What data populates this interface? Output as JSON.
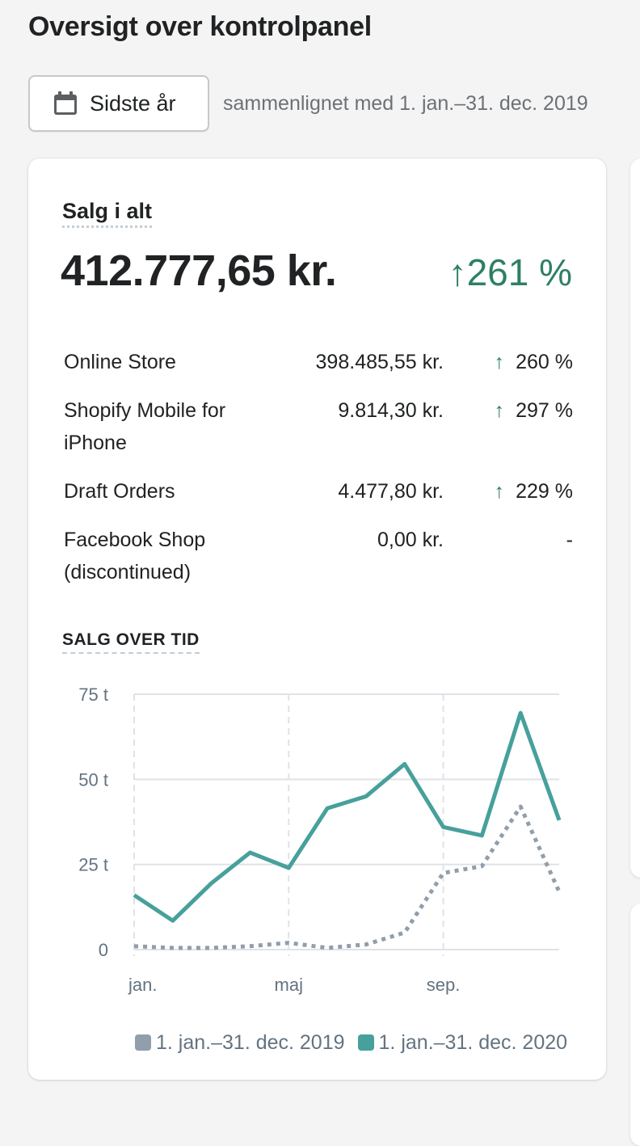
{
  "header": {
    "title": "Oversigt over kontrolpanel"
  },
  "date_filter": {
    "label": "Sidste år",
    "icon": "calendar-icon",
    "comparison": "sammenlignet med 1. jan.–31. dec. 2019"
  },
  "sales_card": {
    "title": "Salg i alt",
    "total": "412.777,65 kr.",
    "change": "261 %",
    "change_color": "#2e8062",
    "rows": [
      {
        "label": "Online Store",
        "value": "398.485,55 kr.",
        "change": "260 %",
        "up": true
      },
      {
        "label": "Shopify Mobile for iPhone",
        "value": "9.814,30 kr.",
        "change": "297 %",
        "up": true
      },
      {
        "label": "Draft Orders",
        "value": "4.477,80 kr.",
        "change": "229 %",
        "up": true
      },
      {
        "label": "Facebook Shop (discontinued)",
        "value": "0,00 kr.",
        "change": "-",
        "up": false
      }
    ],
    "chart_title": "SALG OVER TID"
  },
  "chart_data": {
    "type": "line",
    "x": [
      "jan.",
      "feb.",
      "mar.",
      "apr.",
      "maj",
      "jun.",
      "jul.",
      "aug.",
      "sep.",
      "okt.",
      "nov.",
      "dec."
    ],
    "x_tick_labels": [
      "jan.",
      "maj",
      "sep."
    ],
    "y_ticks": [
      0,
      25,
      50,
      75
    ],
    "y_tick_labels": [
      "0",
      "25 t",
      "50 t",
      "75 t"
    ],
    "ylim": [
      0,
      75
    ],
    "grid": true,
    "legend_position": "bottom",
    "series": [
      {
        "name": "1. jan.–31. dec. 2019",
        "color": "#919eab",
        "style": "dotted",
        "values": [
          1,
          0.5,
          0.5,
          1,
          2,
          0.5,
          1.5,
          5,
          22.5,
          24.5,
          42,
          17
        ]
      },
      {
        "name": "1. jan.–31. dec. 2020",
        "color": "#47a09c",
        "style": "solid",
        "values": [
          16,
          8.5,
          19.5,
          28.5,
          24,
          41.5,
          45,
          54.5,
          36,
          33.5,
          69.5,
          38
        ]
      }
    ]
  }
}
